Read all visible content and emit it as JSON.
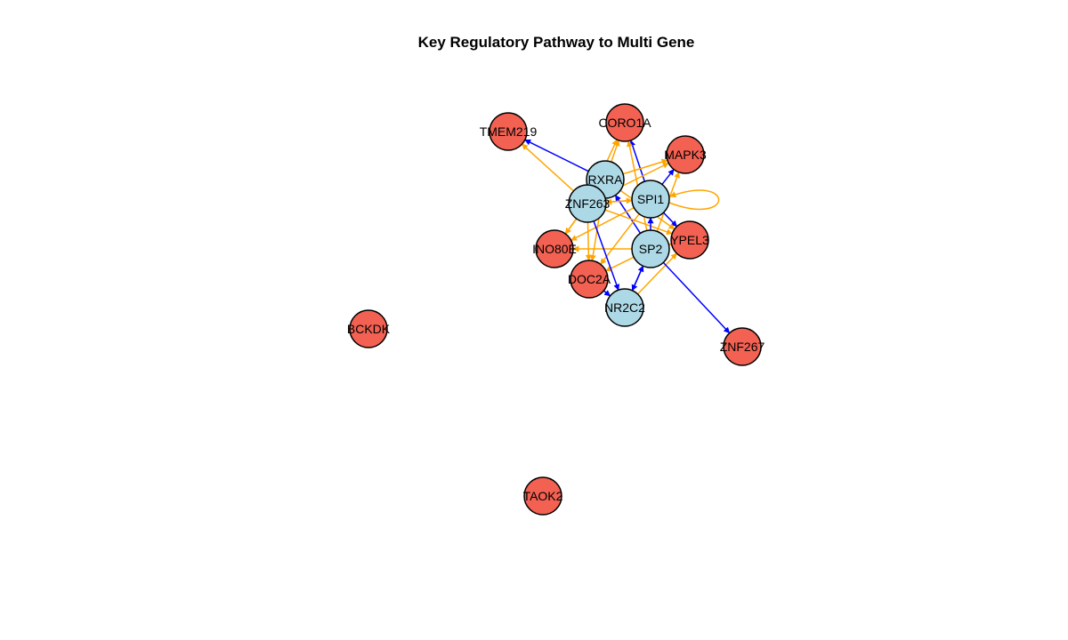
{
  "title": "Key Regulatory Pathway to Multi Gene",
  "colors": {
    "regulator_fill": "#ADD8E6",
    "target_fill": "#F26152",
    "node_stroke": "#000000",
    "edge_blue": "#0000FF",
    "edge_orange": "#FFA500"
  },
  "nodes": [
    {
      "id": "RXRA",
      "label": "RXRA",
      "group": "regulator"
    },
    {
      "id": "ZNF263",
      "label": "ZNF263",
      "group": "regulator"
    },
    {
      "id": "SPI1",
      "label": "SPI1",
      "group": "regulator"
    },
    {
      "id": "SP2",
      "label": "SP2",
      "group": "regulator"
    },
    {
      "id": "NR2C2",
      "label": "NR2C2",
      "group": "regulator"
    },
    {
      "id": "TMEM219",
      "label": "TMEM219",
      "group": "target"
    },
    {
      "id": "CORO1A",
      "label": "CORO1A",
      "group": "target"
    },
    {
      "id": "MAPK3",
      "label": "MAPK3",
      "group": "target"
    },
    {
      "id": "YPEL3",
      "label": "YPEL3",
      "group": "target"
    },
    {
      "id": "INO80E",
      "label": "INO80E",
      "group": "target"
    },
    {
      "id": "DOC2A",
      "label": "DOC2A",
      "group": "target"
    },
    {
      "id": "ZNF267",
      "label": "ZNF267",
      "group": "target"
    },
    {
      "id": "BCKDK",
      "label": "BCKDK",
      "group": "target"
    },
    {
      "id": "TAOK2",
      "label": "TAOK2",
      "group": "target"
    }
  ],
  "edges": [
    {
      "from": "RXRA",
      "to": "TMEM219",
      "color": "blue"
    },
    {
      "from": "ZNF263",
      "to": "TMEM219",
      "color": "orange"
    },
    {
      "from": "RXRA",
      "to": "CORO1A",
      "color": "orange"
    },
    {
      "from": "ZNF263",
      "to": "CORO1A",
      "color": "orange"
    },
    {
      "from": "SPI1",
      "to": "CORO1A",
      "color": "blue"
    },
    {
      "from": "SP2",
      "to": "CORO1A",
      "color": "orange"
    },
    {
      "from": "RXRA",
      "to": "MAPK3",
      "color": "orange"
    },
    {
      "from": "ZNF263",
      "to": "MAPK3",
      "color": "orange"
    },
    {
      "from": "SPI1",
      "to": "MAPK3",
      "color": "blue"
    },
    {
      "from": "SP2",
      "to": "MAPK3",
      "color": "orange"
    },
    {
      "from": "SPI1",
      "to": "SPI1",
      "color": "orange"
    },
    {
      "from": "SP2",
      "to": "RXRA",
      "color": "blue"
    },
    {
      "from": "SPI1",
      "to": "ZNF263",
      "color": "orange"
    },
    {
      "from": "ZNF263",
      "to": "SPI1",
      "color": "orange"
    },
    {
      "from": "SPI1",
      "to": "YPEL3",
      "color": "blue"
    },
    {
      "from": "ZNF263",
      "to": "YPEL3",
      "color": "orange"
    },
    {
      "from": "RXRA",
      "to": "YPEL3",
      "color": "orange"
    },
    {
      "from": "SP2",
      "to": "SPI1",
      "color": "blue"
    },
    {
      "from": "RXRA",
      "to": "INO80E",
      "color": "orange"
    },
    {
      "from": "ZNF263",
      "to": "INO80E",
      "color": "orange"
    },
    {
      "from": "SPI1",
      "to": "INO80E",
      "color": "orange"
    },
    {
      "from": "SP2",
      "to": "INO80E",
      "color": "orange"
    },
    {
      "from": "ZNF263",
      "to": "DOC2A",
      "color": "orange"
    },
    {
      "from": "RXRA",
      "to": "DOC2A",
      "color": "orange"
    },
    {
      "from": "SPI1",
      "to": "DOC2A",
      "color": "orange"
    },
    {
      "from": "SP2",
      "to": "DOC2A",
      "color": "orange"
    },
    {
      "from": "SP2",
      "to": "NR2C2",
      "color": "blue"
    },
    {
      "from": "NR2C2",
      "to": "SP2",
      "color": "blue"
    },
    {
      "from": "ZNF263",
      "to": "NR2C2",
      "color": "blue"
    },
    {
      "from": "DOC2A",
      "to": "NR2C2",
      "color": "blue"
    },
    {
      "from": "NR2C2",
      "to": "YPEL3",
      "color": "orange"
    },
    {
      "from": "SP2",
      "to": "YPEL3",
      "color": "orange"
    },
    {
      "from": "SP2",
      "to": "ZNF267",
      "color": "blue"
    }
  ]
}
